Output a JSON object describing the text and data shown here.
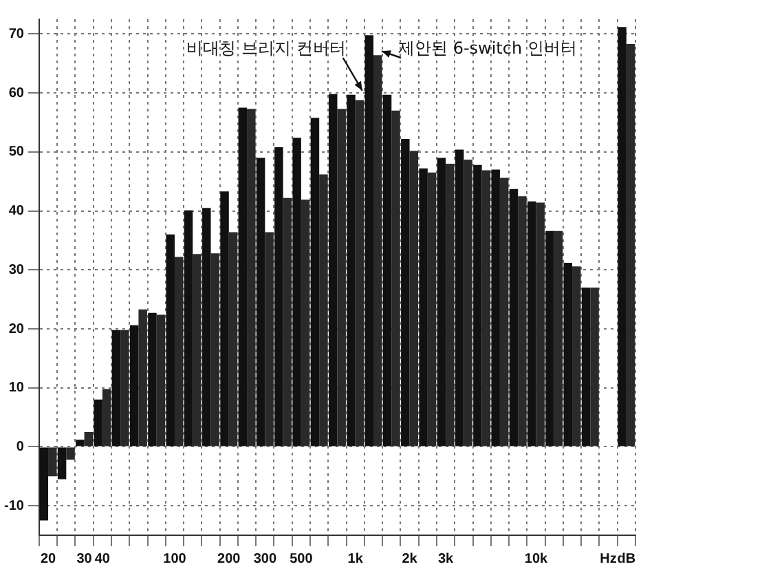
{
  "chart_data": {
    "type": "bar",
    "categories": [
      "20",
      null,
      "30",
      "40",
      null,
      null,
      null,
      "100",
      null,
      null,
      "200",
      null,
      "300",
      null,
      "500",
      null,
      null,
      "1k",
      null,
      null,
      "2k",
      null,
      "3k",
      null,
      null,
      null,
      null,
      "10k",
      null,
      null,
      null,
      "Hz",
      "dB"
    ],
    "series": [
      {
        "color": "#111111",
        "values": [
          -12.5,
          -5.5,
          1.2,
          8,
          19.8,
          20.6,
          22.7,
          36,
          40.1,
          40.5,
          43.3,
          57.5,
          49,
          50.8,
          52.4,
          55.8,
          59.8,
          59.7,
          69.8,
          59.7,
          52.2,
          47.2,
          49,
          50.4,
          47.8,
          47,
          43.7,
          41.6,
          36.6,
          31.2,
          27,
          null,
          71.2
        ]
      },
      {
        "color": "#2a2a2a",
        "values": [
          -5,
          -2.2,
          2.5,
          9.8,
          19.8,
          23.3,
          22.4,
          32.2,
          32.7,
          32.8,
          36.4,
          57.3,
          36.4,
          42.2,
          41.9,
          46.2,
          57.3,
          58.8,
          66.4,
          57,
          50.2,
          46.5,
          48,
          48.7,
          46.9,
          45.6,
          42.5,
          41.4,
          36.6,
          30.6,
          27,
          null,
          68.3
        ]
      }
    ],
    "ylim": [
      -15,
      72.5
    ],
    "yticks": [
      -10,
      0,
      10,
      20,
      30,
      40,
      50,
      60,
      70
    ],
    "grid": true,
    "legend": false,
    "annotations": [
      {
        "text": "비대칭 브리지 컨버터",
        "x": "1k",
        "y": 59.7
      },
      "제안된 6-switch 인버터"
    ]
  }
}
